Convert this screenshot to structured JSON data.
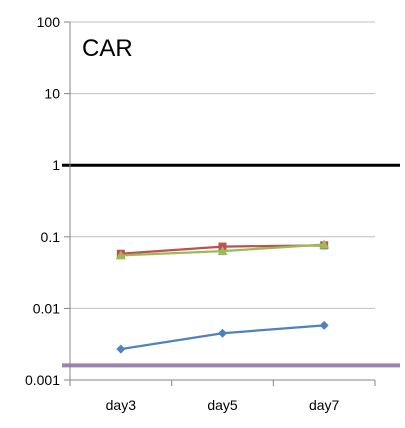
{
  "chart_data": {
    "type": "line",
    "title": "CAR",
    "xlabel": "",
    "ylabel": "",
    "yscale": "log",
    "ylim": [
      0.001,
      100
    ],
    "yticks": [
      {
        "value": 100,
        "label": "100"
      },
      {
        "value": 10,
        "label": "10"
      },
      {
        "value": 1,
        "label": "1"
      },
      {
        "value": 0.1,
        "label": "0.1"
      },
      {
        "value": 0.01,
        "label": "0.01"
      },
      {
        "value": 0.001,
        "label": "0.001"
      }
    ],
    "grid": true,
    "categories": [
      "day3",
      "day5",
      "day7"
    ],
    "series": [
      {
        "color": "#4f81bd",
        "marker": "diamond",
        "values": [
          0.0027,
          0.0045,
          0.0058
        ]
      },
      {
        "color": "#c0504d",
        "marker": "square",
        "values": [
          0.058,
          0.073,
          0.076
        ]
      },
      {
        "color": "#9bbb59",
        "marker": "triangle",
        "values": [
          0.055,
          0.063,
          0.078
        ]
      }
    ],
    "reference_lines": [
      {
        "value": 1,
        "color": "#000000"
      },
      {
        "value": 0.0016,
        "color": "#8064a2"
      }
    ]
  }
}
